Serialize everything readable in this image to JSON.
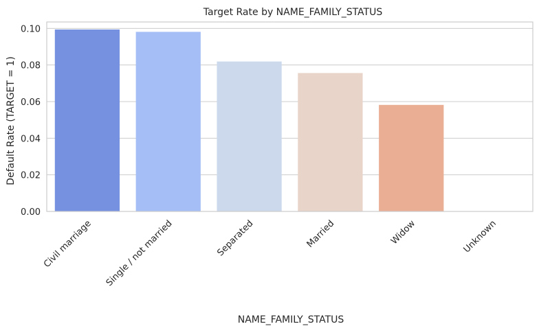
{
  "chart_data": {
    "type": "bar",
    "title": "Target Rate by NAME_FAMILY_STATUS",
    "xlabel": "NAME_FAMILY_STATUS",
    "ylabel": "Default Rate (TARGET = 1)",
    "categories": [
      "Civil marriage",
      "Single / not married",
      "Separated",
      "Married",
      "Widow",
      "Unknown"
    ],
    "values": [
      0.0994,
      0.0981,
      0.0819,
      0.0756,
      0.0582,
      0.0
    ],
    "colors": [
      "#7591e0",
      "#a5bff6",
      "#ccd9ec",
      "#e9d4c9",
      "#eaae95",
      "#e0664f"
    ],
    "ylim": [
      0,
      0.1
    ],
    "yticks": [
      "0.00",
      "0.02",
      "0.04",
      "0.06",
      "0.08",
      "0.10"
    ],
    "ytick_values": [
      0,
      0.02,
      0.04,
      0.06,
      0.08,
      0.1
    ],
    "grid": true,
    "legend": "none"
  }
}
